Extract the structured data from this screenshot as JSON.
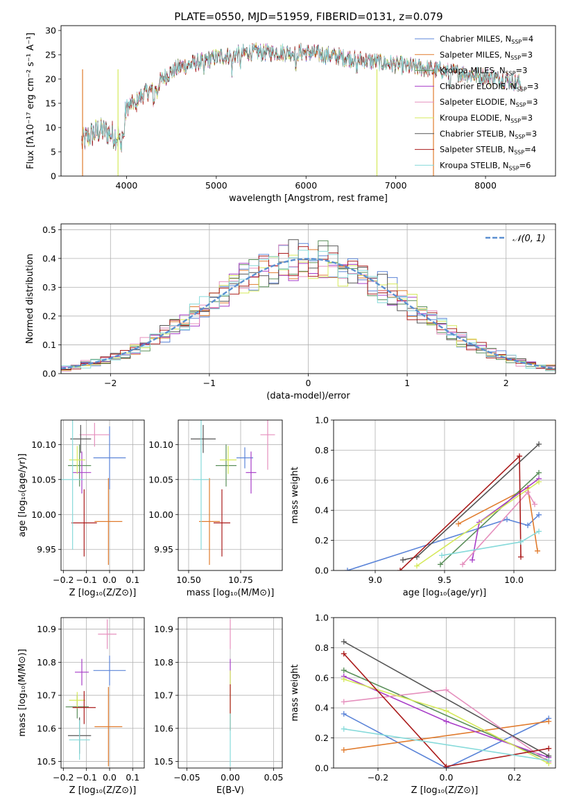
{
  "figure_title": "PLATE=0550, MJD=51959, FIBERID=0131, z=0.079",
  "colors": {
    "Chabrier MILES": "#5b84d8",
    "Salpeter MILES": "#e07b2d",
    "Kroupa MILES": "#5a8f5a",
    "Chabrier ELODIE": "#a83ec8",
    "Salpeter ELODIE": "#e58fbd",
    "Kroupa ELODIE": "#d5e95a",
    "Chabrier STELIB": "#555555",
    "Salpeter STELIB": "#aa1a1a",
    "Kroupa STELIB": "#86dada"
  },
  "chart_data": [
    {
      "id": "spectrum",
      "type": "line",
      "xlabel": "wavelength [Angstrom, rest frame]",
      "ylabel": "Flux [fλ10⁻¹⁷ erg cm⁻² s⁻¹ A⁻¹]",
      "xlim": [
        3270,
        8780
      ],
      "ylim": [
        0,
        31
      ],
      "xticks": [
        4000,
        5000,
        6000,
        7000,
        8000
      ],
      "yticks": [
        0,
        5,
        10,
        15,
        20,
        25,
        30
      ],
      "legend_position": "top-right",
      "legend": [
        {
          "name": "Chabrier MILES",
          "nssp": "4"
        },
        {
          "name": "Salpeter MILES",
          "nssp": "3"
        },
        {
          "name": "Kroupa MILES",
          "nssp": "3"
        },
        {
          "name": "Chabrier ELODIE",
          "nssp": "3"
        },
        {
          "name": "Salpeter ELODIE",
          "nssp": "3"
        },
        {
          "name": "Kroupa ELODIE",
          "nssp": "3"
        },
        {
          "name": "Chabrier STELIB",
          "nssp": "3"
        },
        {
          "name": "Salpeter STELIB",
          "nssp": "4"
        },
        {
          "name": "Kroupa STELIB",
          "nssp": "6"
        }
      ],
      "continuum": [
        [
          3500,
          7
        ],
        [
          3600,
          8.5
        ],
        [
          3700,
          9.5
        ],
        [
          3800,
          9
        ],
        [
          3900,
          8
        ],
        [
          3950,
          9
        ],
        [
          4000,
          14
        ],
        [
          4100,
          15.5
        ],
        [
          4200,
          17
        ],
        [
          4300,
          18
        ],
        [
          4400,
          20
        ],
        [
          4500,
          21.5
        ],
        [
          4600,
          22.5
        ],
        [
          4700,
          23
        ],
        [
          4800,
          23.5
        ],
        [
          4900,
          24
        ],
        [
          5000,
          24.5
        ],
        [
          5200,
          25
        ],
        [
          5400,
          25.5
        ],
        [
          5600,
          25.5
        ],
        [
          5800,
          25.5
        ],
        [
          6000,
          25.5
        ],
        [
          6200,
          25
        ],
        [
          6400,
          24.5
        ],
        [
          6600,
          24
        ],
        [
          6800,
          23.5
        ],
        [
          7000,
          23
        ],
        [
          7200,
          22.5
        ],
        [
          7400,
          22
        ],
        [
          7600,
          21.5
        ],
        [
          7800,
          21
        ],
        [
          8000,
          20.5
        ],
        [
          8200,
          20
        ],
        [
          8400,
          19
        ]
      ],
      "dropouts": [
        [
          3510,
          "Salpeter MILES"
        ],
        [
          3905,
          "Kroupa ELODIE"
        ],
        [
          6790,
          "Kroupa ELODIE"
        ],
        [
          7420,
          "Salpeter MILES"
        ]
      ]
    },
    {
      "id": "residuals",
      "type": "histogram",
      "xlabel": "(data-model)/error",
      "ylabel": "Normed distribution",
      "xlim": [
        -2.5,
        2.5
      ],
      "ylim": [
        0,
        0.52
      ],
      "xticks": [
        -2,
        -1,
        0,
        1,
        2
      ],
      "yticks": [
        0.0,
        0.1,
        0.2,
        0.3,
        0.4,
        0.5
      ],
      "grid": true,
      "reference_label": "𝒩(0, 1)",
      "reference_color": "#5b8fd0",
      "bin_width": 0.1
    },
    {
      "id": "age_vs_Z",
      "type": "errorbar",
      "xlabel": "Z [log₁₀(Z/Z⊙)]",
      "ylabel": "age  [log₁₀(age/yr)]",
      "xlim": [
        -0.21,
        0.15
      ],
      "ylim": [
        9.92,
        10.135
      ],
      "xticks": [
        -0.2,
        -0.1,
        0.0,
        0.1
      ],
      "yticks": [
        9.95,
        10.0,
        10.05,
        10.1
      ],
      "points": [
        {
          "model": "Chabrier MILES",
          "x": 0.0,
          "xerr": 0.07,
          "y": 10.081,
          "yerr": 0.045
        },
        {
          "model": "Salpeter MILES",
          "x": -0.005,
          "xerr": 0.06,
          "y": 9.99,
          "yerr": 0.062
        },
        {
          "model": "Kroupa MILES",
          "x": -0.13,
          "xerr": 0.05,
          "y": 10.07,
          "yerr": 0.03
        },
        {
          "model": "Chabrier ELODIE",
          "x": -0.12,
          "xerr": 0.04,
          "y": 10.06,
          "yerr": 0.03
        },
        {
          "model": "Salpeter ELODIE",
          "x": -0.065,
          "xerr": 0.065,
          "y": 10.114,
          "yerr": 0.017
        },
        {
          "model": "Kroupa ELODIE",
          "x": -0.14,
          "xerr": 0.035,
          "y": 10.078,
          "yerr": 0.02
        },
        {
          "model": "Chabrier STELIB",
          "x": -0.125,
          "xerr": 0.045,
          "y": 10.108,
          "yerr": 0.02
        },
        {
          "model": "Salpeter STELIB",
          "x": -0.11,
          "xerr": 0.055,
          "y": 9.988,
          "yerr": 0.048
        },
        {
          "model": "Kroupa STELIB",
          "x": -0.16,
          "xerr": 0.05,
          "y": 10.05,
          "yerr": 0.1
        }
      ]
    },
    {
      "id": "age_vs_mass",
      "type": "errorbar",
      "xlabel": "mass [log₁₀(M/M⊙)]",
      "xlim": [
        10.45,
        10.95
      ],
      "ylim": [
        9.92,
        10.135
      ],
      "xticks": [
        10.5,
        10.75
      ],
      "yticks": [
        9.95,
        10.0,
        10.05,
        10.1
      ],
      "points": [
        {
          "model": "Chabrier MILES",
          "x": 10.77,
          "xerr": 0.04,
          "y": 10.081,
          "yerr": 0.015
        },
        {
          "model": "Salpeter MILES",
          "x": 10.6,
          "xerr": 0.05,
          "y": 9.99,
          "yerr": 0.062
        },
        {
          "model": "Kroupa MILES",
          "x": 10.68,
          "xerr": 0.05,
          "y": 10.07,
          "yerr": 0.03
        },
        {
          "model": "Chabrier ELODIE",
          "x": 10.8,
          "xerr": 0.025,
          "y": 10.06,
          "yerr": 0.03
        },
        {
          "model": "Salpeter ELODIE",
          "x": 10.88,
          "xerr": 0.035,
          "y": 10.114,
          "yerr": 0.05
        },
        {
          "model": "Kroupa ELODIE",
          "x": 10.69,
          "xerr": 0.04,
          "y": 10.078,
          "yerr": 0.02
        },
        {
          "model": "Chabrier STELIB",
          "x": 10.57,
          "xerr": 0.06,
          "y": 10.108,
          "yerr": 0.02
        },
        {
          "model": "Salpeter STELIB",
          "x": 10.66,
          "xerr": 0.04,
          "y": 9.988,
          "yerr": 0.048
        },
        {
          "model": "Kroupa STELIB",
          "x": 10.56,
          "xerr": 0.04,
          "y": 10.05,
          "yerr": 0.1
        }
      ]
    },
    {
      "id": "weight_vs_age",
      "type": "line",
      "xlabel": "age  [log₁₀(age/yr)]",
      "ylabel": "mass weight",
      "xlim": [
        8.7,
        10.3
      ],
      "ylim": [
        0,
        1.0
      ],
      "xticks": [
        9.0,
        9.5,
        10.0
      ],
      "yticks": [
        0.0,
        0.2,
        0.4,
        0.6,
        0.8,
        1.0
      ],
      "grid": true,
      "series": [
        {
          "model": "Chabrier MILES",
          "points": [
            [
              8.8,
              0.0
            ],
            [
              9.95,
              0.34
            ],
            [
              10.1,
              0.3
            ],
            [
              10.18,
              0.37
            ]
          ]
        },
        {
          "model": "Salpeter MILES",
          "points": [
            [
              9.6,
              0.31
            ],
            [
              10.1,
              0.55
            ],
            [
              10.17,
              0.13
            ]
          ]
        },
        {
          "model": "Kroupa MILES",
          "points": [
            [
              9.47,
              0.04
            ],
            [
              10.18,
              0.65
            ]
          ]
        },
        {
          "model": "Chabrier ELODIE",
          "points": [
            [
              9.7,
              0.07
            ],
            [
              9.75,
              0.32
            ],
            [
              10.18,
              0.61
            ]
          ]
        },
        {
          "model": "Salpeter ELODIE",
          "points": [
            [
              9.63,
              0.04
            ],
            [
              10.1,
              0.52
            ],
            [
              10.15,
              0.44
            ]
          ]
        },
        {
          "model": "Kroupa ELODIE",
          "points": [
            [
              9.3,
              0.03
            ],
            [
              10.18,
              0.59
            ]
          ]
        },
        {
          "model": "Chabrier STELIB",
          "points": [
            [
              9.2,
              0.07
            ],
            [
              9.3,
              0.09
            ],
            [
              10.18,
              0.84
            ]
          ]
        },
        {
          "model": "Salpeter STELIB",
          "points": [
            [
              9.18,
              0.0
            ],
            [
              10.04,
              0.76
            ],
            [
              10.05,
              0.09
            ]
          ]
        },
        {
          "model": "Kroupa STELIB",
          "points": [
            [
              9.48,
              0.1
            ],
            [
              10.05,
              0.19
            ],
            [
              10.18,
              0.26
            ]
          ]
        }
      ]
    },
    {
      "id": "mass_vs_Z",
      "type": "errorbar",
      "xlabel": "Z [log₁₀(Z/Z⊙)]",
      "ylabel": "mass [log₁₀(M/M⊙)]",
      "xlim": [
        -0.21,
        0.15
      ],
      "ylim": [
        10.48,
        10.935
      ],
      "xticks": [
        -0.2,
        -0.1,
        0.0,
        0.1
      ],
      "yticks": [
        10.5,
        10.6,
        10.7,
        10.8,
        10.9
      ],
      "points": [
        {
          "model": "Chabrier MILES",
          "x": 0.0,
          "xerr": 0.07,
          "y": 10.775,
          "yerr": 0.045
        },
        {
          "model": "Salpeter MILES",
          "x": -0.005,
          "xerr": 0.06,
          "y": 10.605,
          "yerr": 0.12
        },
        {
          "model": "Kroupa MILES",
          "x": -0.14,
          "xerr": 0.05,
          "y": 10.665,
          "yerr": 0.035
        },
        {
          "model": "Chabrier ELODIE",
          "x": -0.12,
          "xerr": 0.03,
          "y": 10.77,
          "yerr": 0.04
        },
        {
          "model": "Salpeter ELODIE",
          "x": -0.01,
          "xerr": 0.04,
          "y": 10.885,
          "yerr": 0.045
        },
        {
          "model": "Kroupa ELODIE",
          "x": -0.14,
          "xerr": 0.035,
          "y": 10.685,
          "yerr": 0.025
        },
        {
          "model": "Chabrier STELIB",
          "x": -0.13,
          "xerr": 0.05,
          "y": 10.578,
          "yerr": 0.055
        },
        {
          "model": "Salpeter STELIB",
          "x": -0.11,
          "xerr": 0.05,
          "y": 10.663,
          "yerr": 0.05
        },
        {
          "model": "Kroupa STELIB",
          "x": -0.13,
          "xerr": 0.045,
          "y": 10.565,
          "yerr": 0.06
        }
      ]
    },
    {
      "id": "mass_vs_ebv",
      "type": "errorbar",
      "xlabel": "E(B-V)",
      "xlim": [
        -0.06,
        0.06
      ],
      "ylim": [
        10.48,
        10.935
      ],
      "xticks": [
        -0.05,
        0.0,
        0.05
      ],
      "yticks": [
        10.5,
        10.6,
        10.7,
        10.8,
        10.9
      ],
      "points": [
        {
          "model": "Salpeter ELODIE",
          "x": 0.0,
          "xerr": 0,
          "y": 10.885,
          "yerr": 0.045
        },
        {
          "model": "Chabrier ELODIE",
          "x": 0.0,
          "xerr": 0,
          "y": 10.77,
          "yerr": 0.04
        },
        {
          "model": "Kroupa ELODIE",
          "x": 0.0,
          "xerr": 0,
          "y": 10.685,
          "yerr": 0.09
        },
        {
          "model": "Salpeter STELIB",
          "x": 0.0,
          "xerr": 0,
          "y": 10.663,
          "yerr": 0.07
        },
        {
          "model": "Kroupa STELIB",
          "x": 0.0,
          "xerr": 0,
          "y": 10.565,
          "yerr": 0.08
        }
      ]
    },
    {
      "id": "weight_vs_Z",
      "type": "line",
      "xlabel": "Z [log₁₀(Z/Z⊙)]",
      "ylabel": "mass weight",
      "xlim": [
        -0.33,
        0.32
      ],
      "ylim": [
        0,
        1.0
      ],
      "xticks": [
        -0.2,
        0.0,
        0.2
      ],
      "yticks": [
        0.0,
        0.2,
        0.4,
        0.6,
        0.8,
        1.0
      ],
      "grid": true,
      "series": [
        {
          "model": "Chabrier MILES",
          "points": [
            [
              -0.3,
              0.36
            ],
            [
              0.0,
              0.0
            ],
            [
              0.3,
              0.33
            ]
          ]
        },
        {
          "model": "Salpeter MILES",
          "points": [
            [
              -0.3,
              0.12
            ],
            [
              0.3,
              0.31
            ]
          ]
        },
        {
          "model": "Kroupa MILES",
          "points": [
            [
              -0.3,
              0.65
            ],
            [
              0.3,
              0.05
            ]
          ]
        },
        {
          "model": "Chabrier ELODIE",
          "points": [
            [
              -0.3,
              0.61
            ],
            [
              0.0,
              0.31
            ],
            [
              0.3,
              0.07
            ]
          ]
        },
        {
          "model": "Salpeter ELODIE",
          "points": [
            [
              -0.3,
              0.44
            ],
            [
              0.0,
              0.52
            ],
            [
              0.3,
              0.04
            ]
          ]
        },
        {
          "model": "Kroupa ELODIE",
          "points": [
            [
              -0.3,
              0.59
            ],
            [
              0.0,
              0.38
            ],
            [
              0.3,
              0.03
            ]
          ]
        },
        {
          "model": "Chabrier STELIB",
          "points": [
            [
              -0.3,
              0.84
            ],
            [
              0.3,
              0.08
            ]
          ]
        },
        {
          "model": "Salpeter STELIB",
          "points": [
            [
              -0.3,
              0.76
            ],
            [
              0.0,
              0.01
            ],
            [
              0.3,
              0.13
            ]
          ]
        },
        {
          "model": "Kroupa STELIB",
          "points": [
            [
              -0.3,
              0.26
            ],
            [
              0.3,
              0.05
            ]
          ]
        }
      ]
    }
  ]
}
